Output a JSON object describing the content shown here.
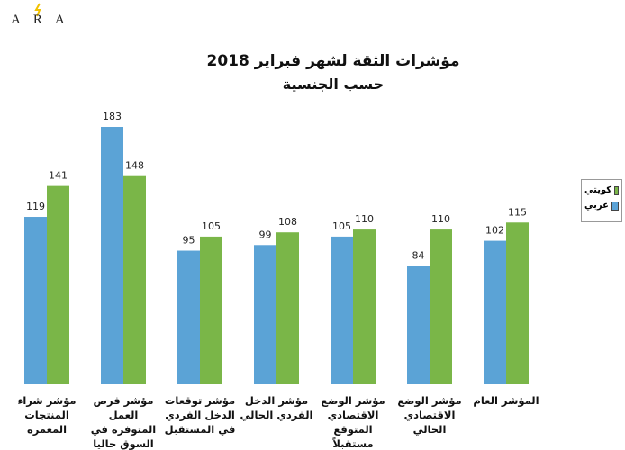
{
  "logo": "ARA",
  "chart_data": {
    "type": "bar",
    "title": "مؤشرات الثقة لشهر فبراير 2018",
    "subtitle": "حسب الجنسية",
    "categories": [
      "مؤشر شراء المنتجات المعمرة",
      "مؤشر فرص العمل المتوفرة في السوق حاليا",
      "مؤشر توقعات الدخل الفردي في المستقبل",
      "مؤشر الدخل الفردي الحالي",
      "مؤشر الوضع الاقتصادي المتوقع مستقبلاً",
      "مؤشر الوضع الاقتصادي الحالي",
      "المؤشر العام"
    ],
    "series": [
      {
        "name": "عربي",
        "color": "#5ba3d6",
        "values": [
          119,
          183,
          95,
          99,
          105,
          84,
          102
        ]
      },
      {
        "name": "كويتي",
        "color": "#7ab648",
        "values": [
          141,
          148,
          105,
          108,
          110,
          110,
          115
        ]
      }
    ],
    "legend": "right"
  }
}
